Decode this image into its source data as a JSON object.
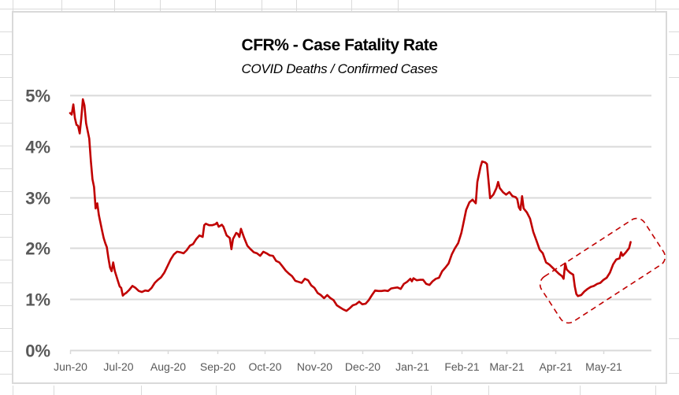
{
  "chart_data": {
    "type": "line",
    "title": "CFR% - Case Fatality Rate",
    "subtitle": "COVID Deaths / Confirmed Cases",
    "xlabel": "",
    "ylabel": "",
    "ylim": [
      0,
      5
    ],
    "y_ticks": [
      "0%",
      "1%",
      "2%",
      "3%",
      "4%",
      "5%"
    ],
    "y_tick_values": [
      0,
      1,
      2,
      3,
      4,
      5
    ],
    "x_ticks": [
      "Jun-20",
      "Jul-20",
      "Aug-20",
      "Sep-20",
      "Oct-20",
      "Nov-20",
      "Dec-20",
      "Jan-21",
      "Feb-21",
      "Mar-21",
      "Apr-21",
      "May-21"
    ],
    "x_tick_dates": [
      "2020-06-01",
      "2020-07-01",
      "2020-08-01",
      "2020-09-01",
      "2020-10-01",
      "2020-11-01",
      "2020-12-01",
      "2021-01-01",
      "2021-02-01",
      "2021-03-01",
      "2021-04-01",
      "2021-05-01"
    ],
    "xlim": [
      "2020-06-01",
      "2021-05-31"
    ],
    "grid": "horizontal",
    "legend": "none",
    "series": [
      {
        "name": "CFR%",
        "color": "#C00000",
        "points": [
          [
            "2020-06-01",
            4.65
          ],
          [
            "2020-06-02",
            4.62
          ],
          [
            "2020-06-03",
            4.82
          ],
          [
            "2020-06-04",
            4.55
          ],
          [
            "2020-06-05",
            4.42
          ],
          [
            "2020-06-06",
            4.4
          ],
          [
            "2020-06-07",
            4.25
          ],
          [
            "2020-06-08",
            4.55
          ],
          [
            "2020-06-09",
            4.92
          ],
          [
            "2020-06-10",
            4.8
          ],
          [
            "2020-06-11",
            4.45
          ],
          [
            "2020-06-12",
            4.3
          ],
          [
            "2020-06-13",
            4.15
          ],
          [
            "2020-06-14",
            3.7
          ],
          [
            "2020-06-15",
            3.35
          ],
          [
            "2020-06-16",
            3.2
          ],
          [
            "2020-06-17",
            2.78
          ],
          [
            "2020-06-18",
            2.88
          ],
          [
            "2020-06-19",
            2.65
          ],
          [
            "2020-06-20",
            2.5
          ],
          [
            "2020-06-21",
            2.35
          ],
          [
            "2020-06-22",
            2.2
          ],
          [
            "2020-06-23",
            2.1
          ],
          [
            "2020-06-24",
            2.02
          ],
          [
            "2020-06-25",
            1.8
          ],
          [
            "2020-06-26",
            1.62
          ],
          [
            "2020-06-27",
            1.55
          ],
          [
            "2020-06-28",
            1.72
          ],
          [
            "2020-06-29",
            1.55
          ],
          [
            "2020-06-30",
            1.45
          ],
          [
            "2020-07-01",
            1.35
          ],
          [
            "2020-07-02",
            1.25
          ],
          [
            "2020-07-03",
            1.22
          ],
          [
            "2020-07-04",
            1.07
          ],
          [
            "2020-07-05",
            1.1
          ],
          [
            "2020-07-06",
            1.12
          ],
          [
            "2020-07-08",
            1.18
          ],
          [
            "2020-07-10",
            1.26
          ],
          [
            "2020-07-12",
            1.22
          ],
          [
            "2020-07-14",
            1.16
          ],
          [
            "2020-07-16",
            1.14
          ],
          [
            "2020-07-18",
            1.17
          ],
          [
            "2020-07-20",
            1.16
          ],
          [
            "2020-07-22",
            1.22
          ],
          [
            "2020-07-24",
            1.32
          ],
          [
            "2020-07-26",
            1.38
          ],
          [
            "2020-07-28",
            1.43
          ],
          [
            "2020-07-30",
            1.52
          ],
          [
            "2020-08-01",
            1.65
          ],
          [
            "2020-08-03",
            1.78
          ],
          [
            "2020-08-05",
            1.88
          ],
          [
            "2020-08-07",
            1.93
          ],
          [
            "2020-08-09",
            1.92
          ],
          [
            "2020-08-11",
            1.9
          ],
          [
            "2020-08-13",
            1.96
          ],
          [
            "2020-08-15",
            2.05
          ],
          [
            "2020-08-17",
            2.08
          ],
          [
            "2020-08-19",
            2.18
          ],
          [
            "2020-08-21",
            2.25
          ],
          [
            "2020-08-23",
            2.22
          ],
          [
            "2020-08-24",
            2.45
          ],
          [
            "2020-08-25",
            2.48
          ],
          [
            "2020-08-27",
            2.45
          ],
          [
            "2020-08-29",
            2.45
          ],
          [
            "2020-08-31",
            2.47
          ],
          [
            "2020-09-01",
            2.5
          ],
          [
            "2020-09-02",
            2.42
          ],
          [
            "2020-09-04",
            2.46
          ],
          [
            "2020-09-05",
            2.42
          ],
          [
            "2020-09-07",
            2.25
          ],
          [
            "2020-09-09",
            2.2
          ],
          [
            "2020-09-10",
            1.98
          ],
          [
            "2020-09-11",
            2.18
          ],
          [
            "2020-09-13",
            2.3
          ],
          [
            "2020-09-14",
            2.28
          ],
          [
            "2020-09-15",
            2.22
          ],
          [
            "2020-09-16",
            2.38
          ],
          [
            "2020-09-18",
            2.2
          ],
          [
            "2020-09-20",
            2.05
          ],
          [
            "2020-09-22",
            1.98
          ],
          [
            "2020-09-24",
            1.92
          ],
          [
            "2020-09-26",
            1.9
          ],
          [
            "2020-09-28",
            1.85
          ],
          [
            "2020-09-30",
            1.93
          ],
          [
            "2020-10-02",
            1.9
          ],
          [
            "2020-10-04",
            1.86
          ],
          [
            "2020-10-06",
            1.85
          ],
          [
            "2020-10-08",
            1.75
          ],
          [
            "2020-10-10",
            1.72
          ],
          [
            "2020-10-12",
            1.64
          ],
          [
            "2020-10-14",
            1.56
          ],
          [
            "2020-10-16",
            1.5
          ],
          [
            "2020-10-18",
            1.45
          ],
          [
            "2020-10-20",
            1.36
          ],
          [
            "2020-10-22",
            1.34
          ],
          [
            "2020-10-24",
            1.32
          ],
          [
            "2020-10-26",
            1.4
          ],
          [
            "2020-10-28",
            1.37
          ],
          [
            "2020-10-30",
            1.27
          ],
          [
            "2020-11-01",
            1.22
          ],
          [
            "2020-11-03",
            1.12
          ],
          [
            "2020-11-05",
            1.08
          ],
          [
            "2020-11-07",
            1.02
          ],
          [
            "2020-11-09",
            1.08
          ],
          [
            "2020-11-11",
            1.02
          ],
          [
            "2020-11-13",
            0.98
          ],
          [
            "2020-11-15",
            0.88
          ],
          [
            "2020-11-17",
            0.84
          ],
          [
            "2020-11-19",
            0.8
          ],
          [
            "2020-11-21",
            0.77
          ],
          [
            "2020-11-23",
            0.82
          ],
          [
            "2020-11-25",
            0.88
          ],
          [
            "2020-11-27",
            0.9
          ],
          [
            "2020-11-29",
            0.95
          ],
          [
            "2020-12-01",
            0.9
          ],
          [
            "2020-12-03",
            0.91
          ],
          [
            "2020-12-05",
            0.98
          ],
          [
            "2020-12-07",
            1.08
          ],
          [
            "2020-12-09",
            1.17
          ],
          [
            "2020-12-11",
            1.16
          ],
          [
            "2020-12-13",
            1.16
          ],
          [
            "2020-12-15",
            1.17
          ],
          [
            "2020-12-17",
            1.16
          ],
          [
            "2020-12-19",
            1.21
          ],
          [
            "2020-12-21",
            1.22
          ],
          [
            "2020-12-23",
            1.23
          ],
          [
            "2020-12-25",
            1.2
          ],
          [
            "2020-12-27",
            1.3
          ],
          [
            "2020-12-29",
            1.34
          ],
          [
            "2020-12-31",
            1.4
          ],
          [
            "2021-01-01",
            1.35
          ],
          [
            "2021-01-02",
            1.41
          ],
          [
            "2021-01-04",
            1.37
          ],
          [
            "2021-01-06",
            1.38
          ],
          [
            "2021-01-08",
            1.38
          ],
          [
            "2021-01-10",
            1.3
          ],
          [
            "2021-01-12",
            1.28
          ],
          [
            "2021-01-14",
            1.35
          ],
          [
            "2021-01-16",
            1.4
          ],
          [
            "2021-01-18",
            1.42
          ],
          [
            "2021-01-20",
            1.55
          ],
          [
            "2021-01-22",
            1.62
          ],
          [
            "2021-01-24",
            1.7
          ],
          [
            "2021-01-26",
            1.88
          ],
          [
            "2021-01-28",
            2.0
          ],
          [
            "2021-01-30",
            2.1
          ],
          [
            "2021-02-01",
            2.3
          ],
          [
            "2021-02-02",
            2.45
          ],
          [
            "2021-02-04",
            2.75
          ],
          [
            "2021-02-06",
            2.9
          ],
          [
            "2021-02-08",
            2.95
          ],
          [
            "2021-02-10",
            2.88
          ],
          [
            "2021-02-11",
            3.3
          ],
          [
            "2021-02-13",
            3.6
          ],
          [
            "2021-02-14",
            3.7
          ],
          [
            "2021-02-16",
            3.68
          ],
          [
            "2021-02-17",
            3.65
          ],
          [
            "2021-02-19",
            2.98
          ],
          [
            "2021-02-21",
            3.05
          ],
          [
            "2021-02-23",
            3.18
          ],
          [
            "2021-02-24",
            3.3
          ],
          [
            "2021-02-25",
            3.18
          ],
          [
            "2021-02-27",
            3.1
          ],
          [
            "2021-03-01",
            3.05
          ],
          [
            "2021-03-03",
            3.1
          ],
          [
            "2021-03-05",
            3.02
          ],
          [
            "2021-03-07",
            3.0
          ],
          [
            "2021-03-08",
            2.96
          ],
          [
            "2021-03-09",
            2.8
          ],
          [
            "2021-03-10",
            2.75
          ],
          [
            "2021-03-11",
            3.02
          ],
          [
            "2021-03-12",
            2.78
          ],
          [
            "2021-03-14",
            2.7
          ],
          [
            "2021-03-16",
            2.58
          ],
          [
            "2021-03-18",
            2.32
          ],
          [
            "2021-03-20",
            2.15
          ],
          [
            "2021-03-22",
            1.97
          ],
          [
            "2021-03-24",
            1.9
          ],
          [
            "2021-03-26",
            1.72
          ],
          [
            "2021-03-28",
            1.68
          ],
          [
            "2021-03-30",
            1.62
          ],
          [
            "2021-04-01",
            1.56
          ],
          [
            "2021-04-03",
            1.5
          ],
          [
            "2021-04-05",
            1.45
          ],
          [
            "2021-04-06",
            1.4
          ],
          [
            "2021-04-07",
            1.7
          ],
          [
            "2021-04-08",
            1.58
          ],
          [
            "2021-04-10",
            1.52
          ],
          [
            "2021-04-12",
            1.48
          ],
          [
            "2021-04-13",
            1.25
          ],
          [
            "2021-04-14",
            1.1
          ],
          [
            "2021-04-15",
            1.06
          ],
          [
            "2021-04-17",
            1.08
          ],
          [
            "2021-04-19",
            1.15
          ],
          [
            "2021-04-21",
            1.2
          ],
          [
            "2021-04-23",
            1.24
          ],
          [
            "2021-04-25",
            1.26
          ],
          [
            "2021-04-27",
            1.3
          ],
          [
            "2021-04-29",
            1.32
          ],
          [
            "2021-05-01",
            1.38
          ],
          [
            "2021-05-03",
            1.42
          ],
          [
            "2021-05-05",
            1.52
          ],
          [
            "2021-05-07",
            1.68
          ],
          [
            "2021-05-09",
            1.78
          ],
          [
            "2021-05-11",
            1.8
          ],
          [
            "2021-05-12",
            1.92
          ],
          [
            "2021-05-13",
            1.85
          ],
          [
            "2021-05-15",
            1.92
          ],
          [
            "2021-05-17",
            2.0
          ],
          [
            "2021-05-18",
            2.12
          ]
        ]
      }
    ],
    "annotations": [
      {
        "type": "dashed-rounded-rectangle",
        "description": "highlight around recent rise",
        "color": "#C00000",
        "spans_dates": [
          "2021-04-03",
          "2021-05-31"
        ],
        "spans_values": [
          0.6,
          2.45
        ]
      }
    ]
  },
  "colors": {
    "line": "#C00000",
    "axis_text": "#595959",
    "gridline": "#D9D9D9",
    "chart_border": "#D9D9D9",
    "sheet_grid": "#DADADA"
  }
}
